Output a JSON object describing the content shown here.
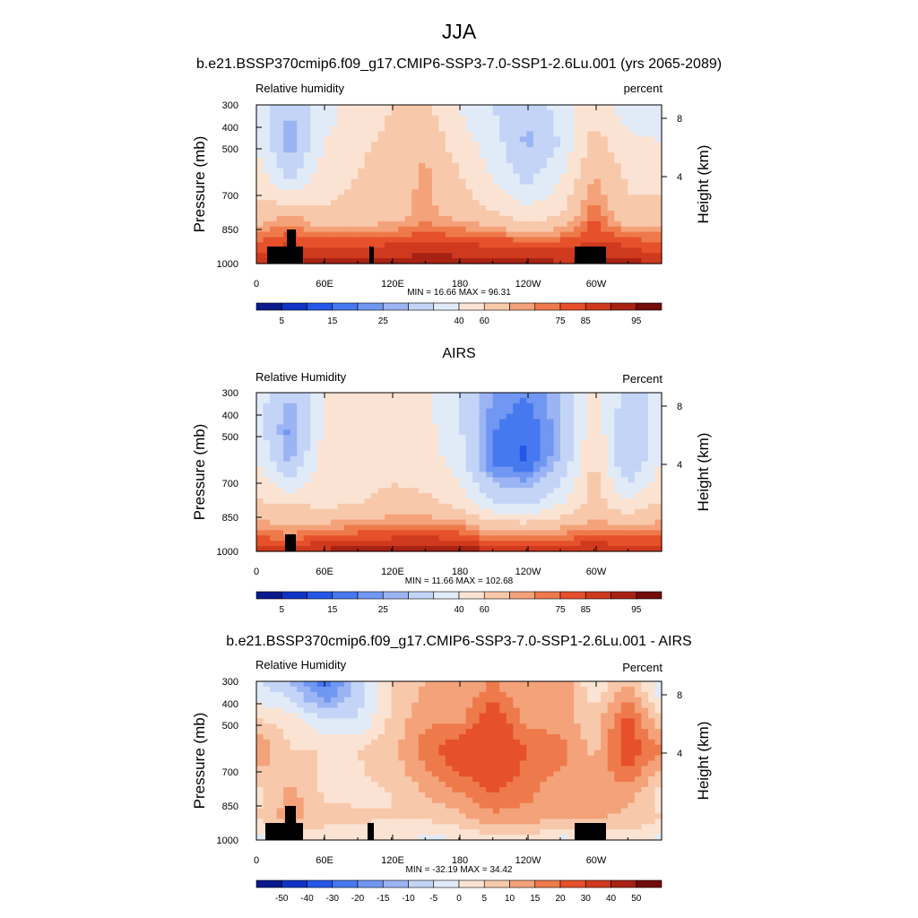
{
  "title": "JJA",
  "colors": {
    "rh_palette": [
      "#0a1a8c",
      "#1033c4",
      "#2457e6",
      "#4678f0",
      "#7097f2",
      "#9bb4f3",
      "#c3d4f6",
      "#e1ebf8",
      "#fbe3d3",
      "#f8c8ab",
      "#f4a27a",
      "#ee7a4c",
      "#e6502a",
      "#cf3a1e",
      "#a82214",
      "#730c0c"
    ],
    "diff_palette": [
      "#0a1a8c",
      "#1033c4",
      "#2457e6",
      "#4678f0",
      "#7097f2",
      "#9bb4f3",
      "#c3d4f6",
      "#e1ebf8",
      "#fbe3d3",
      "#f8c8ab",
      "#f4a27a",
      "#ee7a4c",
      "#e6502a",
      "#cf3a1e",
      "#a82214",
      "#730c0c"
    ],
    "terrain": "#000000"
  },
  "panels": [
    {
      "title": "b.e21.BSSP370cmip6.f09_g17.CMIP6-SSP3-7.0-SSP1-2.6Lu.001 (yrs 2065-2089)",
      "left_label": "Relative humidity",
      "right_label": "percent",
      "minmax": "MIN =  16.66  MAX =  96.31",
      "colorbar_labels": [
        "5",
        "15",
        "25",
        "40",
        "60",
        "75",
        "85",
        "95"
      ]
    },
    {
      "title": "AIRS",
      "left_label": "Relative Humidity",
      "right_label": "Percent",
      "minmax": "MIN =  11.66  MAX = 102.68",
      "colorbar_labels": [
        "5",
        "15",
        "25",
        "40",
        "60",
        "75",
        "85",
        "95"
      ]
    },
    {
      "title": "b.e21.BSSP370cmip6.f09_g17.CMIP6-SSP3-7.0-SSP1-2.6Lu.001 - AIRS",
      "left_label": "Relative Humidity",
      "right_label": "Percent",
      "minmax": "MIN = -32.19  MAX =  34.42",
      "colorbar_labels": [
        "-50",
        "-40",
        "-30",
        "-20",
        "-15",
        "-10",
        "-5",
        "0",
        "5",
        "10",
        "15",
        "20",
        "30",
        "40",
        "50"
      ]
    }
  ],
  "axes": {
    "ylabel": "Pressure (mb)",
    "y2label": "Height (km)",
    "yticks": [
      "300",
      "400",
      "500",
      "700",
      "850",
      "1000"
    ],
    "y2ticks": [
      "8",
      "4"
    ],
    "xticks": [
      "0",
      "60E",
      "120E",
      "180",
      "120W",
      "60W"
    ]
  },
  "chart_data": [
    {
      "type": "heatmap",
      "title": "b.e21.BSSP370cmip6.f09_g17.CMIP6-SSP3-7.0-SSP1-2.6Lu.001 (yrs 2065-2089)",
      "xlabel": "",
      "ylabel": "Pressure (mb)",
      "xlim": [
        0,
        360
      ],
      "ylim": [
        1000,
        300
      ],
      "levels": [
        5,
        10,
        15,
        20,
        25,
        30,
        40,
        50,
        60,
        70,
        75,
        80,
        85,
        90,
        95
      ],
      "min": 16.66,
      "max": 96.31,
      "lon": [
        0,
        30,
        60,
        90,
        120,
        150,
        180,
        210,
        240,
        270,
        300,
        330,
        360
      ],
      "pressure": [
        300,
        400,
        500,
        700,
        850,
        1000
      ],
      "values": [
        [
          45,
          30,
          45,
          55,
          60,
          62,
          50,
          40,
          30,
          45,
          55,
          45,
          45
        ],
        [
          50,
          25,
          50,
          58,
          62,
          68,
          55,
          45,
          28,
          40,
          65,
          52,
          50
        ],
        [
          55,
          35,
          55,
          60,
          65,
          72,
          60,
          48,
          35,
          48,
          70,
          58,
          55
        ],
        [
          65,
          72,
          62,
          64,
          66,
          72,
          68,
          62,
          55,
          60,
          80,
          62,
          65
        ],
        [
          80,
          85,
          82,
          83,
          84,
          85,
          85,
          83,
          82,
          82,
          86,
          83,
          80
        ],
        [
          88,
          90,
          93,
          92,
          93,
          94,
          93,
          94,
          95,
          90,
          92,
          93,
          88
        ]
      ]
    },
    {
      "type": "heatmap",
      "title": "AIRS",
      "xlabel": "",
      "ylabel": "Pressure (mb)",
      "xlim": [
        0,
        360
      ],
      "ylim": [
        1000,
        300
      ],
      "levels": [
        5,
        10,
        15,
        20,
        25,
        30,
        40,
        50,
        60,
        70,
        75,
        80,
        85,
        90,
        95
      ],
      "min": 11.66,
      "max": 102.68,
      "lon": [
        0,
        30,
        60,
        90,
        120,
        150,
        180,
        210,
        240,
        270,
        300,
        330,
        360
      ],
      "pressure": [
        300,
        400,
        500,
        700,
        850,
        1000
      ],
      "values": [
        [
          45,
          30,
          50,
          55,
          55,
          52,
          40,
          25,
          20,
          30,
          55,
          35,
          45
        ],
        [
          45,
          22,
          52,
          55,
          56,
          54,
          42,
          20,
          15,
          28,
          58,
          30,
          45
        ],
        [
          50,
          28,
          55,
          56,
          58,
          56,
          45,
          18,
          14,
          30,
          62,
          28,
          50
        ],
        [
          62,
          60,
          58,
          60,
          62,
          62,
          58,
          42,
          38,
          50,
          65,
          52,
          62
        ],
        [
          75,
          72,
          75,
          78,
          80,
          80,
          78,
          70,
          70,
          72,
          75,
          75,
          75
        ],
        [
          90,
          92,
          92,
          93,
          94,
          96,
          94,
          92,
          92,
          92,
          92,
          90,
          90
        ]
      ]
    },
    {
      "type": "heatmap",
      "title": "b.e21.BSSP370cmip6.f09_g17.CMIP6-SSP3-7.0-SSP1-2.6Lu.001 - AIRS",
      "xlabel": "",
      "ylabel": "Pressure (mb)",
      "xlim": [
        0,
        360
      ],
      "ylim": [
        1000,
        300
      ],
      "levels": [
        -50,
        -40,
        -30,
        -20,
        -15,
        -10,
        -5,
        0,
        5,
        10,
        15,
        20,
        30,
        40,
        50
      ],
      "min": -32.19,
      "max": 34.42,
      "lon": [
        0,
        30,
        60,
        90,
        120,
        150,
        180,
        210,
        240,
        270,
        300,
        330,
        360
      ],
      "pressure": [
        300,
        400,
        500,
        700,
        850,
        1000
      ],
      "values": [
        [
          -5,
          -10,
          -25,
          -8,
          5,
          10,
          10,
          15,
          10,
          15,
          0,
          10,
          -5
        ],
        [
          5,
          3,
          -5,
          -5,
          6,
          14,
          13,
          25,
          13,
          12,
          7,
          22,
          5
        ],
        [
          15,
          5,
          5,
          5,
          8,
          18,
          25,
          28,
          20,
          18,
          8,
          25,
          15
        ],
        [
          3,
          12,
          4,
          4,
          5,
          10,
          15,
          20,
          17,
          10,
          15,
          12,
          3
        ],
        [
          5,
          13,
          7,
          6,
          5,
          5,
          8,
          13,
          12,
          10,
          11,
          8,
          5
        ],
        [
          -2,
          -2,
          1,
          1,
          0,
          -1,
          -1,
          2,
          3,
          -2,
          0,
          3,
          -2
        ]
      ]
    }
  ]
}
